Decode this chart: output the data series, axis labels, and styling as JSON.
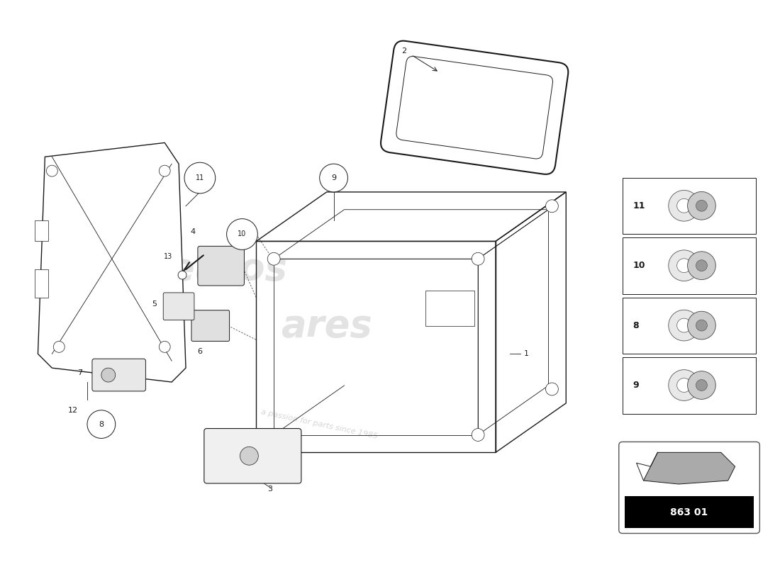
{
  "bg_color": "#ffffff",
  "line_color": "#1a1a1a",
  "watermark_color": "#d0d0d0",
  "fastener_labels": [
    "11",
    "10",
    "8",
    "9"
  ],
  "part_code": "863 01"
}
